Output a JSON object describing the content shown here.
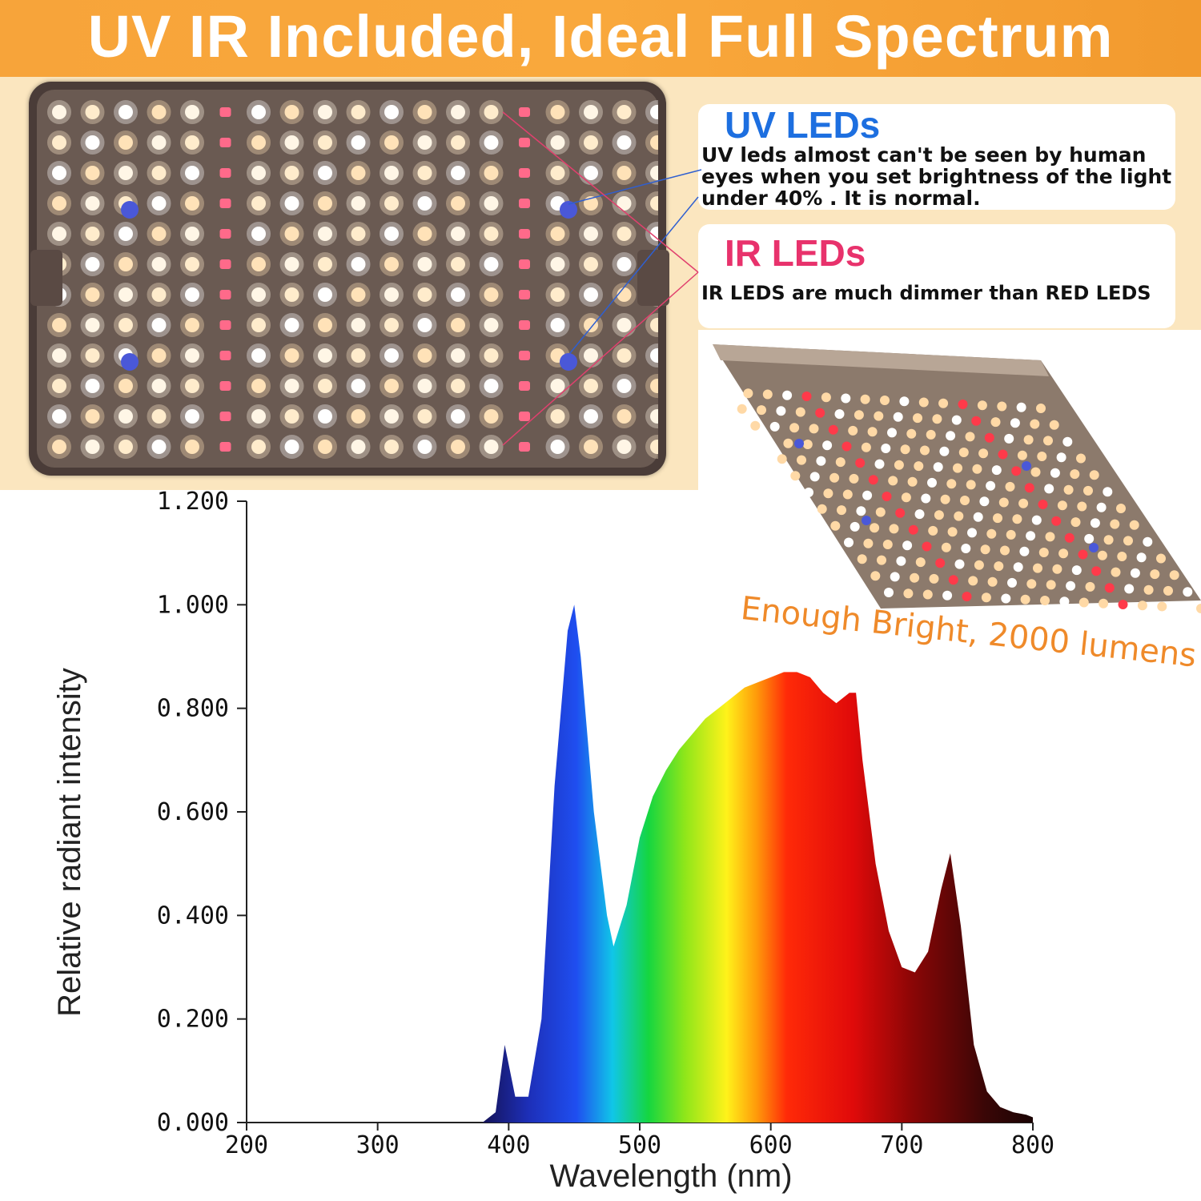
{
  "banner": {
    "title": "UV IR Included, Ideal Full Spectrum"
  },
  "callouts": {
    "uv": {
      "title": "UV LEDs",
      "body": "UV leds almost can't be seen by human eyes when you set brightness of the light under 40% . It is normal."
    },
    "ir": {
      "title": "IR LEDs",
      "body": "IR LEDS are much dimmer than RED LEDS"
    }
  },
  "angled_caption": "Enough Bright, 2000 lumens",
  "colors": {
    "banner": "#f7a43a",
    "uv_title": "#1d6fe0",
    "ir_title": "#e8326c",
    "caption": "#ef8a2a",
    "cream": "#fbe6bf"
  },
  "chart_data": {
    "type": "area",
    "title": "",
    "xlabel": "Wavelength (nm)",
    "ylabel": "Relative radiant intensity",
    "xlim": [
      200,
      800
    ],
    "ylim": [
      0,
      1.2
    ],
    "xticks": [
      "200",
      "300",
      "400",
      "500",
      "600",
      "700",
      "800"
    ],
    "yticks": [
      "0.000",
      "0.200",
      "0.400",
      "0.600",
      "0.800",
      "1.000",
      "1.200"
    ],
    "grid": false,
    "legend": "none",
    "fill": "visible-spectrum gradient",
    "x": [
      380,
      390,
      397,
      405,
      415,
      425,
      435,
      445,
      450,
      455,
      465,
      475,
      480,
      490,
      500,
      510,
      520,
      530,
      540,
      550,
      560,
      570,
      580,
      590,
      600,
      610,
      620,
      630,
      640,
      650,
      660,
      665,
      670,
      680,
      690,
      700,
      710,
      720,
      730,
      737,
      745,
      755,
      765,
      775,
      785,
      795,
      800
    ],
    "series": [
      {
        "values": [
          0.0,
          0.02,
          0.15,
          0.05,
          0.05,
          0.2,
          0.65,
          0.95,
          1.0,
          0.9,
          0.6,
          0.4,
          0.34,
          0.42,
          0.55,
          0.63,
          0.68,
          0.72,
          0.75,
          0.78,
          0.8,
          0.82,
          0.84,
          0.85,
          0.86,
          0.87,
          0.87,
          0.86,
          0.83,
          0.81,
          0.83,
          0.83,
          0.7,
          0.5,
          0.37,
          0.3,
          0.29,
          0.33,
          0.45,
          0.52,
          0.38,
          0.15,
          0.06,
          0.03,
          0.02,
          0.015,
          0.01
        ]
      }
    ]
  }
}
